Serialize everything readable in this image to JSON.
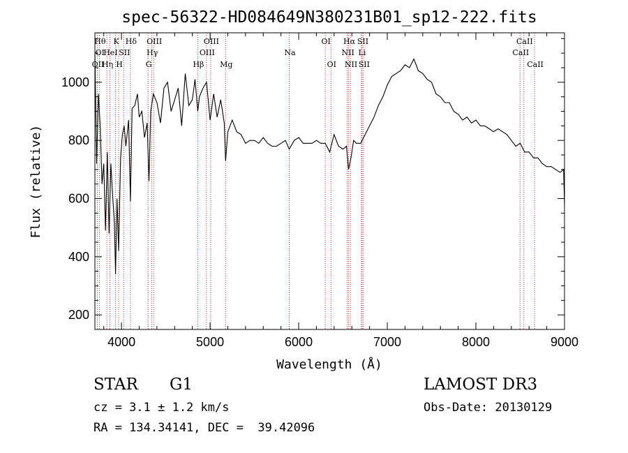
{
  "chart_data": {
    "type": "line",
    "title": "spec-56322-HD084649N380231B01_sp12-222.fits",
    "xlabel": "Wavelength (Å)",
    "ylabel": "Flux (relative)",
    "xlim": [
      3700,
      9000
    ],
    "ylim": [
      150,
      1170
    ],
    "x_ticks": [
      4000,
      5000,
      6000,
      7000,
      8000,
      9000
    ],
    "y_ticks": [
      200,
      400,
      600,
      800,
      1000
    ],
    "line_color": "#000000",
    "marker_color": "#b22222",
    "series": [
      {
        "name": "flux",
        "x": [
          3700,
          3720,
          3740,
          3760,
          3780,
          3800,
          3820,
          3840,
          3860,
          3880,
          3900,
          3920,
          3933,
          3950,
          3968,
          3990,
          4010,
          4030,
          4050,
          4080,
          4101,
          4120,
          4150,
          4180,
          4200,
          4230,
          4260,
          4290,
          4310,
          4330,
          4360,
          4400,
          4440,
          4480,
          4520,
          4560,
          4600,
          4640,
          4680,
          4720,
          4760,
          4800,
          4830,
          4861,
          4880,
          4920,
          4960,
          5000,
          5040,
          5080,
          5120,
          5160,
          5175,
          5200,
          5250,
          5300,
          5350,
          5400,
          5450,
          5500,
          5550,
          5600,
          5650,
          5700,
          5750,
          5800,
          5850,
          5893,
          5950,
          6000,
          6050,
          6100,
          6150,
          6200,
          6250,
          6300,
          6350,
          6400,
          6450,
          6500,
          6540,
          6563,
          6590,
          6620,
          6650,
          6700,
          6750,
          6800,
          6850,
          6900,
          6950,
          7000,
          7050,
          7100,
          7150,
          7200,
          7250,
          7300,
          7350,
          7400,
          7450,
          7500,
          7550,
          7600,
          7650,
          7700,
          7750,
          7800,
          7850,
          7900,
          7950,
          8000,
          8050,
          8100,
          8150,
          8200,
          8250,
          8300,
          8350,
          8400,
          8450,
          8500,
          8550,
          8600,
          8650,
          8700,
          8750,
          8800,
          8850,
          8900,
          8950,
          8990,
          9000
        ],
        "values": [
          1100,
          720,
          960,
          850,
          650,
          720,
          490,
          760,
          480,
          720,
          610,
          520,
          340,
          600,
          420,
          740,
          820,
          850,
          780,
          870,
          590,
          910,
          920,
          960,
          880,
          900,
          810,
          860,
          660,
          900,
          960,
          930,
          860,
          980,
          1000,
          900,
          940,
          980,
          850,
          1030,
          920,
          940,
          1010,
          900,
          950,
          980,
          1000,
          870,
          960,
          880,
          940,
          860,
          730,
          830,
          870,
          830,
          820,
          790,
          800,
          800,
          790,
          810,
          790,
          780,
          780,
          790,
          800,
          770,
          800,
          810,
          790,
          790,
          790,
          800,
          790,
          790,
          760,
          820,
          780,
          770,
          780,
          700,
          740,
          800,
          790,
          790,
          820,
          850,
          880,
          920,
          950,
          990,
          1020,
          1030,
          1040,
          1060,
          1050,
          1080,
          1040,
          1030,
          1010,
          1000,
          960,
          950,
          930,
          930,
          900,
          890,
          870,
          880,
          860,
          870,
          850,
          850,
          840,
          830,
          840,
          830,
          820,
          800,
          780,
          790,
          760,
          760,
          740,
          740,
          720,
          710,
          710,
          700,
          690,
          700,
          580
        ]
      }
    ],
    "line_markers": [
      {
        "x": 3727,
        "rows": [
          {
            "t": "OII",
            "r": 3
          }
        ]
      },
      {
        "x": 3750,
        "rows": [
          {
            "t": "Hθ",
            "r": 1
          },
          {
            "t": "OI",
            "r": 2
          }
        ]
      },
      {
        "x": 3835,
        "rows": [
          {
            "t": "Hη",
            "r": 3
          }
        ]
      },
      {
        "x": 3869,
        "rows": [
          {
            "t": "HeI",
            "r": 2
          }
        ]
      },
      {
        "x": 3933,
        "rows": [
          {
            "t": "K",
            "r": 1
          }
        ]
      },
      {
        "x": 3968,
        "rows": [
          {
            "t": "H",
            "r": 3
          }
        ]
      },
      {
        "x": 4026,
        "rows": [
          {
            "t": "SII",
            "r": 2
          }
        ]
      },
      {
        "x": 4101,
        "rows": [
          {
            "t": "Hδ",
            "r": 1
          }
        ]
      },
      {
        "x": 4300,
        "rows": [
          {
            "t": "G",
            "r": 3
          }
        ]
      },
      {
        "x": 4340,
        "rows": [
          {
            "t": "Hγ",
            "r": 2
          }
        ]
      },
      {
        "x": 4363,
        "rows": [
          {
            "t": "OIII",
            "r": 1
          }
        ]
      },
      {
        "x": 4861,
        "rows": [
          {
            "t": "Hβ",
            "r": 3
          }
        ]
      },
      {
        "x": 4959,
        "rows": [
          {
            "t": "OIII",
            "r": 2
          }
        ]
      },
      {
        "x": 5007,
        "rows": [
          {
            "t": "OIII",
            "r": 1
          }
        ]
      },
      {
        "x": 5175,
        "rows": [
          {
            "t": "Mg",
            "r": 3
          }
        ]
      },
      {
        "x": 5893,
        "rows": [
          {
            "t": "Na",
            "r": 2
          }
        ]
      },
      {
        "x": 6300,
        "rows": [
          {
            "t": "OI",
            "r": 1
          }
        ]
      },
      {
        "x": 6364,
        "rows": [
          {
            "t": "OI",
            "r": 3
          }
        ]
      },
      {
        "x": 6548,
        "rows": [
          {
            "t": "NII",
            "r": 2
          }
        ]
      },
      {
        "x": 6563,
        "rows": [
          {
            "t": "Hα",
            "r": 1
          }
        ]
      },
      {
        "x": 6583,
        "rows": [
          {
            "t": "NII",
            "r": 3
          }
        ]
      },
      {
        "x": 6716,
        "rows": [
          {
            "t": "SII",
            "r": 1
          }
        ]
      },
      {
        "x": 6708,
        "rows": [
          {
            "t": "Li",
            "r": 2
          }
        ]
      },
      {
        "x": 6731,
        "rows": [
          {
            "t": "SII",
            "r": 3
          }
        ]
      },
      {
        "x": 8498,
        "rows": [
          {
            "t": "CaII",
            "r": 2
          }
        ]
      },
      {
        "x": 8542,
        "rows": [
          {
            "t": "CaII",
            "r": 1
          }
        ]
      },
      {
        "x": 8662,
        "rows": [
          {
            "t": "CaII",
            "r": 3
          }
        ]
      }
    ]
  },
  "info": {
    "object_class": "STAR",
    "subclass": "G1",
    "survey": "LAMOST DR3",
    "redshift": "cz = 3.1 ± 1.2 km/s",
    "obs_date": "Obs-Date: 20130129",
    "coords": "RA = 134.34141, DEC =  39.42096"
  }
}
